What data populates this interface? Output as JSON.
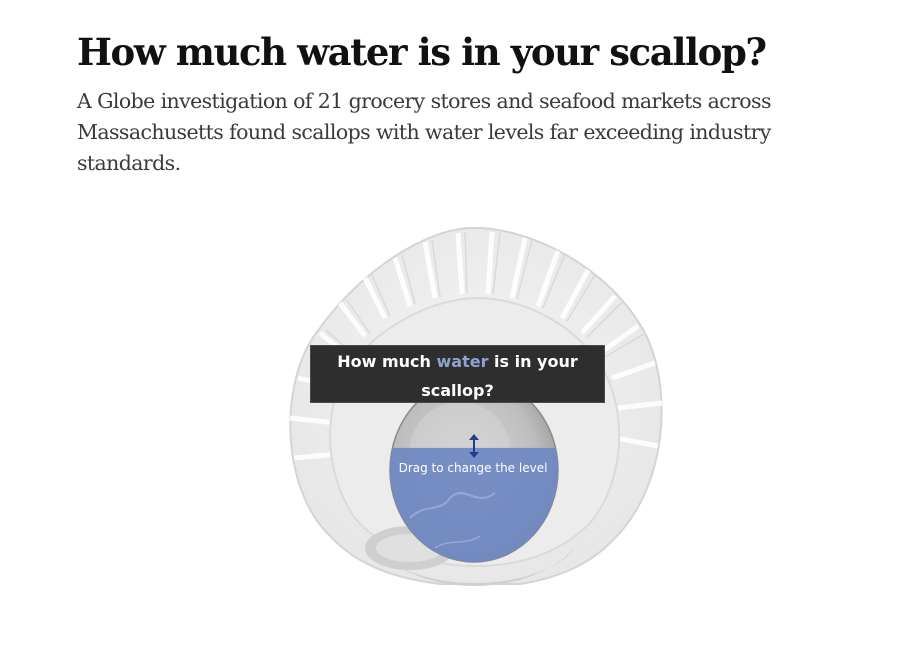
{
  "article": {
    "headline": "How much water is in your scallop?",
    "dek": "A Globe investigation of 21 grocery stores and seafood markets across Massachusetts found scallops with water levels far exceeding industry standards."
  },
  "interactive": {
    "question_pre": "How much ",
    "question_accent": "water",
    "question_post": " is in your scallop?",
    "drag_hint": "Drag to change the level",
    "water_level_fraction": 0.62,
    "colors": {
      "water": "#6f88c2",
      "question_bg": "#2e2e2e",
      "accent": "#8fa3d1",
      "handle": "#1f3f8f"
    }
  }
}
